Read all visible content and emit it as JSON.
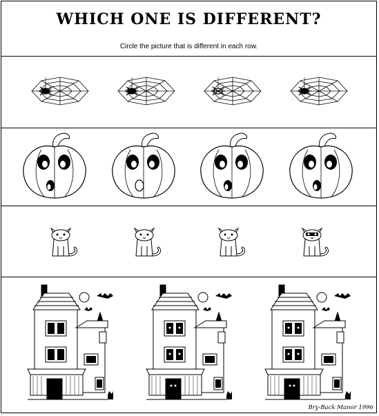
{
  "worksheet": {
    "title": "WHICH ONE IS DIFFERENT?",
    "instruction": "Circle the picture that is different in each row.",
    "credit": "Bry-Back Manor 1996"
  },
  "rows": [
    {
      "subject": "spider-web",
      "items": [
        {
          "variant": "a"
        },
        {
          "variant": "a"
        },
        {
          "variant": "b"
        },
        {
          "variant": "a"
        }
      ]
    },
    {
      "subject": "pumpkin",
      "items": [
        {
          "variant": "a"
        },
        {
          "variant": "b"
        },
        {
          "variant": "a"
        },
        {
          "variant": "a"
        }
      ]
    },
    {
      "subject": "cat",
      "items": [
        {
          "variant": "a"
        },
        {
          "variant": "a"
        },
        {
          "variant": "a"
        },
        {
          "variant": "b"
        }
      ]
    },
    {
      "subject": "haunted-house",
      "items": [
        {
          "variant": "b"
        },
        {
          "variant": "a"
        },
        {
          "variant": "a"
        }
      ]
    }
  ]
}
